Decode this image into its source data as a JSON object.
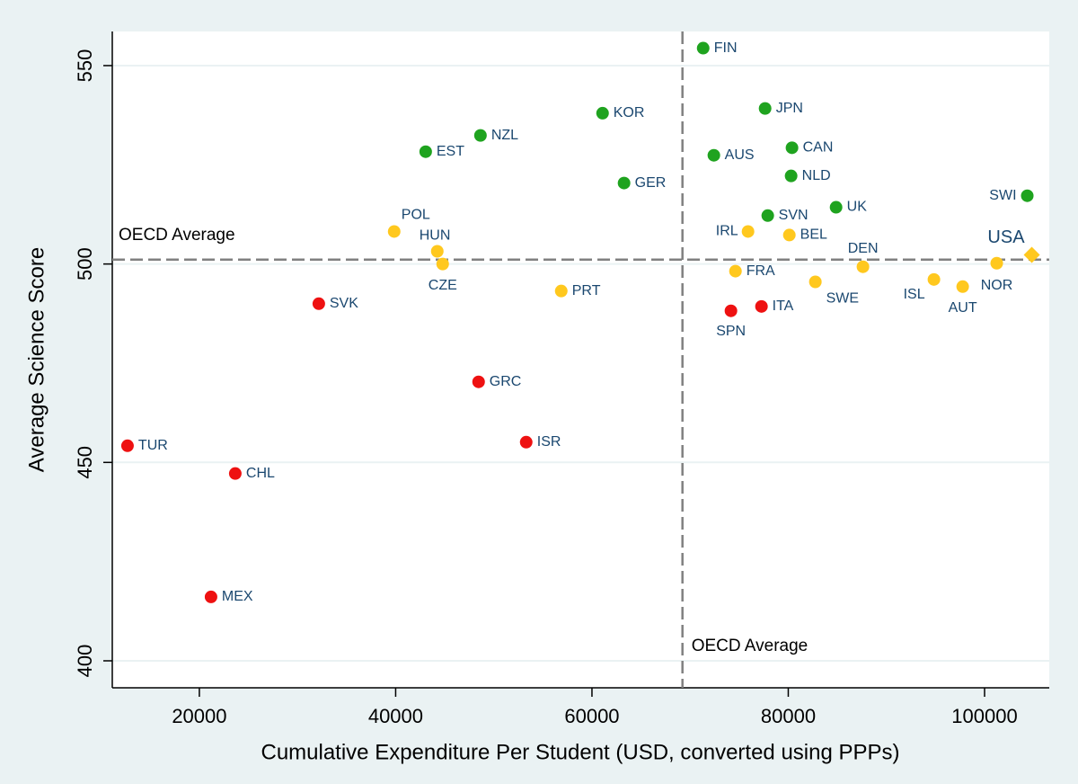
{
  "chart_data": {
    "type": "scatter",
    "x_label": "Cumulative Expenditure Per Student (USD, converted using PPPs)",
    "y_label": "Average Science Score",
    "xlim": [
      11130,
      106590
    ],
    "xticks": [
      20000,
      40000,
      60000,
      80000,
      100000
    ],
    "ylim": [
      393.2,
      558.6
    ],
    "yticks": [
      400,
      450,
      500,
      550
    ],
    "grid": true,
    "hline": {
      "value": 501.1,
      "label": "OECD Average"
    },
    "vline": {
      "value": 69220,
      "label": "OECD Average"
    },
    "points": [
      {
        "label": "FIN",
        "x": 71330,
        "y": 554.4,
        "color": "#1fa31f",
        "marker": "circle"
      },
      {
        "label": "JPN",
        "x": 77640,
        "y": 539.2,
        "color": "#1fa31f",
        "marker": "circle"
      },
      {
        "label": "KOR",
        "x": 61080,
        "y": 538,
        "color": "#1fa31f",
        "marker": "circle"
      },
      {
        "label": "NZL",
        "x": 48640,
        "y": 532.4,
        "color": "#1fa31f",
        "marker": "circle"
      },
      {
        "label": "EST",
        "x": 43060,
        "y": 528.3,
        "color": "#1fa31f",
        "marker": "circle"
      },
      {
        "label": "CAN",
        "x": 80380,
        "y": 529.3,
        "color": "#1fa31f",
        "marker": "circle"
      },
      {
        "label": "AUS",
        "x": 72420,
        "y": 527.4,
        "color": "#1fa31f",
        "marker": "circle"
      },
      {
        "label": "NLD",
        "x": 80290,
        "y": 522.2,
        "color": "#1fa31f",
        "marker": "circle"
      },
      {
        "label": "GER",
        "x": 63270,
        "y": 520.4,
        "color": "#1fa31f",
        "marker": "circle"
      },
      {
        "label": "SWI",
        "x": 104350,
        "y": 517.2,
        "color": "#1fa31f",
        "marker": "circle"
      },
      {
        "label": "UK",
        "x": 84870,
        "y": 514.3,
        "color": "#1fa31f",
        "marker": "circle"
      },
      {
        "label": "SVN",
        "x": 77910,
        "y": 512.2,
        "color": "#1fa31f",
        "marker": "circle"
      },
      {
        "label": "POL",
        "x": 39850,
        "y": 508.2,
        "color": "#ffc81e",
        "marker": "circle"
      },
      {
        "label": "IRL",
        "x": 75900,
        "y": 508.2,
        "color": "#ffc81e",
        "marker": "circle"
      },
      {
        "label": "BEL",
        "x": 80110,
        "y": 507.3,
        "color": "#ffc81e",
        "marker": "circle"
      },
      {
        "label": "HUN",
        "x": 44240,
        "y": 503.2,
        "color": "#ffc81e",
        "marker": "circle"
      },
      {
        "label": "USA",
        "x": 104810,
        "y": 502.3,
        "color": "#ffc81e",
        "marker": "diamond"
      },
      {
        "label": "CZE",
        "x": 44790,
        "y": 500,
        "color": "#ffc81e",
        "marker": "circle"
      },
      {
        "label": "DEN",
        "x": 87610,
        "y": 499.3,
        "color": "#ffc81e",
        "marker": "circle"
      },
      {
        "label": "NOR",
        "x": 101240,
        "y": 500.2,
        "color": "#ffc81e",
        "marker": "circle"
      },
      {
        "label": "FRA",
        "x": 74620,
        "y": 498.2,
        "color": "#ffc81e",
        "marker": "circle"
      },
      {
        "label": "ISL",
        "x": 94840,
        "y": 496.1,
        "color": "#ffc81e",
        "marker": "circle"
      },
      {
        "label": "SWE",
        "x": 82760,
        "y": 495.5,
        "color": "#ffc81e",
        "marker": "circle"
      },
      {
        "label": "AUT",
        "x": 97770,
        "y": 494.3,
        "color": "#ffc81e",
        "marker": "circle"
      },
      {
        "label": "PRT",
        "x": 56870,
        "y": 493.2,
        "color": "#ffc81e",
        "marker": "circle"
      },
      {
        "label": "SVK",
        "x": 32170,
        "y": 490,
        "color": "#ee1111",
        "marker": "circle"
      },
      {
        "label": "ITA",
        "x": 77270,
        "y": 489.3,
        "color": "#ee1111",
        "marker": "circle"
      },
      {
        "label": "SPN",
        "x": 74160,
        "y": 488.2,
        "color": "#ee1111",
        "marker": "circle"
      },
      {
        "label": "GRC",
        "x": 48450,
        "y": 470.3,
        "color": "#ee1111",
        "marker": "circle"
      },
      {
        "label": "ISR",
        "x": 53300,
        "y": 455.1,
        "color": "#ee1111",
        "marker": "circle"
      },
      {
        "label": "TUR",
        "x": 12680,
        "y": 454.2,
        "color": "#ee1111",
        "marker": "circle"
      },
      {
        "label": "CHL",
        "x": 23660,
        "y": 447.2,
        "color": "#ee1111",
        "marker": "circle"
      },
      {
        "label": "MEX",
        "x": 21190,
        "y": 416.1,
        "color": "#ee1111",
        "marker": "circle"
      }
    ]
  }
}
